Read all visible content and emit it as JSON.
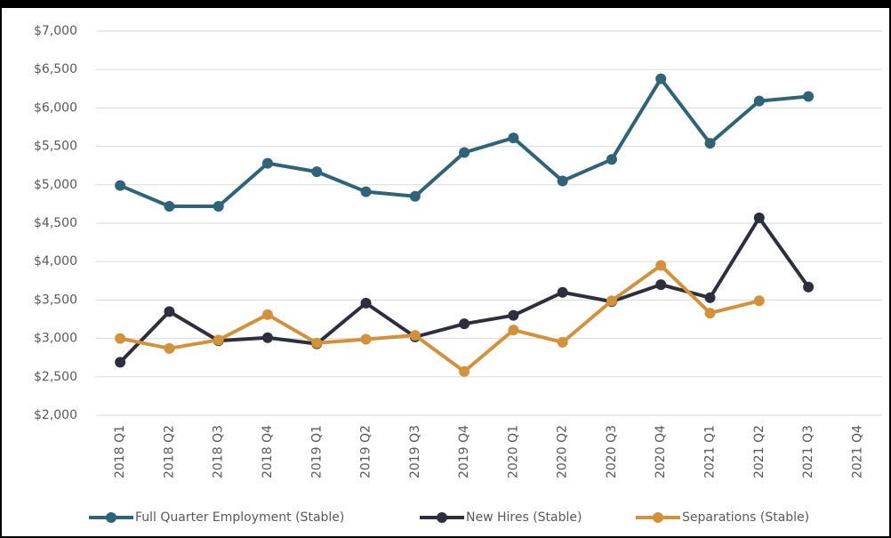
{
  "chart_data": {
    "type": "line",
    "categories": [
      "2018 Q1",
      "2018 Q2",
      "2018 Q3",
      "2018 Q4",
      "2019 Q1",
      "2019 Q2",
      "2019 Q3",
      "2019 Q4",
      "2020 Q1",
      "2020 Q2",
      "2020 Q3",
      "2020 Q4",
      "2021 Q1",
      "2021 Q2",
      "2021 Q3",
      "2021 Q4"
    ],
    "series": [
      {
        "name": "Full Quarter Employment (Stable)",
        "color": "#2f6378",
        "values": [
          4990,
          4720,
          4720,
          5280,
          5170,
          4910,
          4850,
          5420,
          5610,
          5050,
          5330,
          6380,
          5540,
          6090,
          6150,
          null
        ]
      },
      {
        "name": "New Hires (Stable)",
        "color": "#2e2f3d",
        "values": [
          2690,
          3350,
          2970,
          3010,
          2930,
          3460,
          3020,
          3190,
          3300,
          3600,
          3480,
          3700,
          3530,
          4570,
          3670,
          null
        ]
      },
      {
        "name": "Separations (Stable)",
        "color": "#d3913a",
        "values": [
          3000,
          2870,
          2980,
          3310,
          2940,
          2990,
          3040,
          2570,
          3110,
          2950,
          3490,
          3950,
          3330,
          3490,
          null,
          null
        ]
      }
    ],
    "ylim": [
      2000,
      7000
    ],
    "yticks": [
      {
        "value": 2000,
        "label": "$2,000"
      },
      {
        "value": 2500,
        "label": "$2,500"
      },
      {
        "value": 3000,
        "label": "$3,000"
      },
      {
        "value": 3500,
        "label": "$3,500"
      },
      {
        "value": 4000,
        "label": "$4,000"
      },
      {
        "value": 4500,
        "label": "$4,500"
      },
      {
        "value": 5000,
        "label": "$5,000"
      },
      {
        "value": 5500,
        "label": "$5,500"
      },
      {
        "value": 6000,
        "label": "$6,000"
      },
      {
        "value": 6500,
        "label": "$6,500"
      },
      {
        "value": 7000,
        "label": "$7,000"
      }
    ],
    "grid": true,
    "legend": "bottom"
  }
}
